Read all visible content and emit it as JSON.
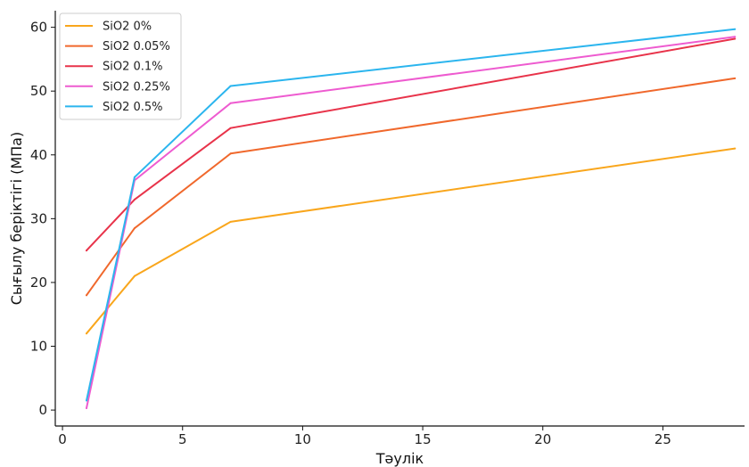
{
  "chart_data": {
    "type": "line",
    "title": "",
    "xlabel": "Тәулік",
    "ylabel": "Сығылу беріктігі (МПа)",
    "xlim": [
      -0.3,
      28.4
    ],
    "ylim": [
      -2.5,
      62.6
    ],
    "xticks": [
      0,
      5,
      10,
      15,
      20,
      25
    ],
    "yticks": [
      0,
      10,
      20,
      30,
      40,
      50,
      60
    ],
    "grid": false,
    "legend_position": "top-left",
    "x": [
      1,
      3,
      7,
      28
    ],
    "series": [
      {
        "name": "SiO2 0%",
        "color": "#F9A61C",
        "values": [
          12,
          21,
          29.5,
          41
        ]
      },
      {
        "name": "SiO2 0.05%",
        "color": "#F0682C",
        "values": [
          18,
          28.5,
          40.2,
          52
        ]
      },
      {
        "name": "SiO2 0.1%",
        "color": "#E8334A",
        "values": [
          25,
          33,
          44.2,
          58.2
        ]
      },
      {
        "name": "SiO2 0.25%",
        "color": "#EE5BD0",
        "values": [
          0.3,
          36,
          48.1,
          58.5
        ]
      },
      {
        "name": "SiO2 0.5%",
        "color": "#2BB5EE",
        "values": [
          1.5,
          36.5,
          50.8,
          59.7
        ]
      }
    ]
  }
}
